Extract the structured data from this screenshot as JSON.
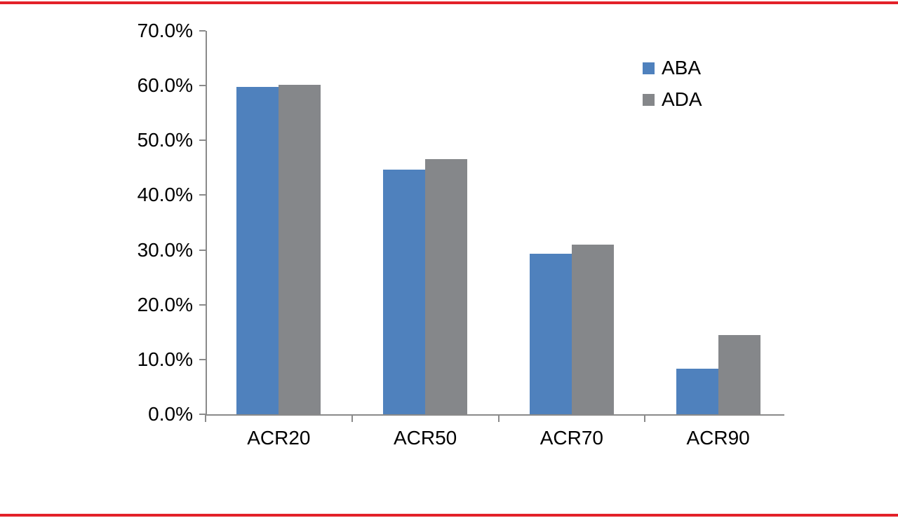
{
  "page": {
    "background_color": "#ffffff",
    "top_rule_color": "#e32129",
    "bottom_rule_color": "#e32129"
  },
  "chart_data": {
    "type": "bar",
    "title": "",
    "xlabel": "",
    "ylabel": "",
    "categories": [
      "ACR20",
      "ACR50",
      "ACR70",
      "ACR90"
    ],
    "series": [
      {
        "name": "ABA",
        "color": "#4F81BD",
        "values": [
          59.7,
          44.7,
          29.3,
          8.3
        ]
      },
      {
        "name": "ADA",
        "color": "#85878A",
        "values": [
          60.1,
          46.6,
          31.0,
          14.4
        ]
      }
    ],
    "ylim": [
      0,
      70
    ],
    "ytick_step": 10,
    "ytick_labels": [
      "0.0%",
      "10.0%",
      "20.0%",
      "30.0%",
      "40.0%",
      "50.0%",
      "60.0%",
      "70.0%"
    ],
    "grid": false,
    "legend_position": "top-right",
    "axis_color": "#8a8a8a",
    "value_unit": "%"
  }
}
